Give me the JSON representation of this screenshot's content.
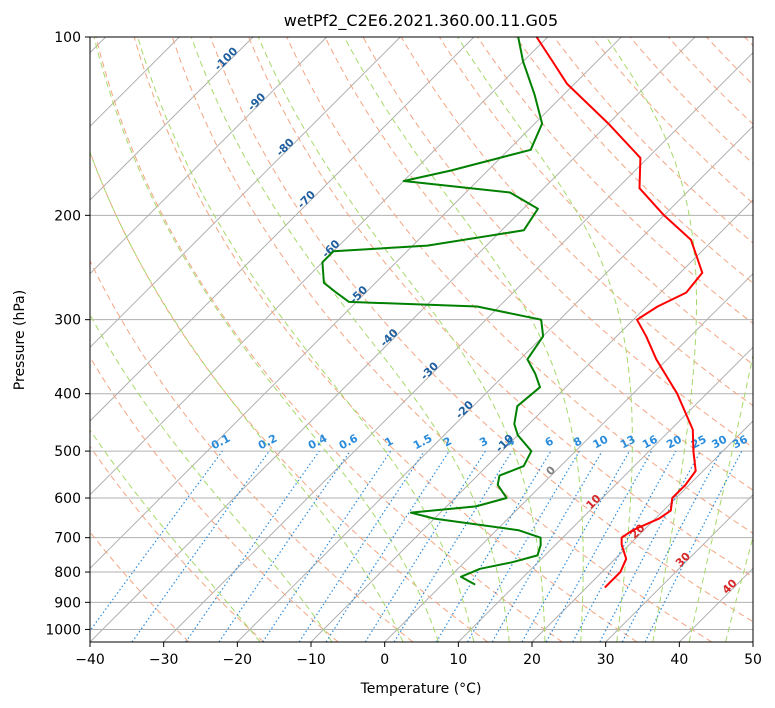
{
  "chart_data": {
    "type": "line",
    "chart_kind": "skew-T log-P diagram",
    "title": "wetPf2_C2E6.2021.360.00.11.G05",
    "xlabel": "Temperature (°C)",
    "ylabel": "Pressure (hPa)",
    "xlim": [
      -40,
      50
    ],
    "ylim": [
      1050,
      100
    ],
    "y_scale": "log",
    "x_ticks": [
      -40,
      -30,
      -20,
      -10,
      0,
      10,
      20,
      30,
      40,
      50
    ],
    "y_ticks": [
      100,
      200,
      300,
      400,
      500,
      600,
      700,
      800,
      900,
      1000
    ],
    "grid": true,
    "series": [
      {
        "role": "temperature",
        "color": "#ff0000",
        "points": [
          {
            "p": 850,
            "t": 22.5
          },
          {
            "p": 800,
            "t": 22.5
          },
          {
            "p": 760,
            "t": 21.5
          },
          {
            "p": 720,
            "t": 19
          },
          {
            "p": 700,
            "t": 18
          },
          {
            "p": 680,
            "t": 18.5
          },
          {
            "p": 650,
            "t": 20.5
          },
          {
            "p": 630,
            "t": 21
          },
          {
            "p": 600,
            "t": 19.5
          },
          {
            "p": 570,
            "t": 19.5
          },
          {
            "p": 540,
            "t": 19
          },
          {
            "p": 500,
            "t": 16
          },
          {
            "p": 460,
            "t": 13
          },
          {
            "p": 400,
            "t": 6
          },
          {
            "p": 350,
            "t": -1.5
          },
          {
            "p": 320,
            "t": -6
          },
          {
            "p": 300,
            "t": -9.5
          },
          {
            "p": 285,
            "t": -8.5
          },
          {
            "p": 270,
            "t": -6.5
          },
          {
            "p": 250,
            "t": -7
          },
          {
            "p": 220,
            "t": -13
          },
          {
            "p": 200,
            "t": -20
          },
          {
            "p": 180,
            "t": -27
          },
          {
            "p": 160,
            "t": -31
          },
          {
            "p": 140,
            "t": -40
          },
          {
            "p": 120,
            "t": -51
          },
          {
            "p": 110,
            "t": -56
          },
          {
            "p": 100,
            "t": -61.5
          }
        ]
      },
      {
        "role": "dewpoint",
        "color": "#008000",
        "points": [
          {
            "p": 840,
            "t": 4.5
          },
          {
            "p": 815,
            "t": 1.5
          },
          {
            "p": 790,
            "t": 3
          },
          {
            "p": 770,
            "t": 6.5
          },
          {
            "p": 750,
            "t": 9
          },
          {
            "p": 720,
            "t": 8
          },
          {
            "p": 700,
            "t": 7
          },
          {
            "p": 680,
            "t": 3
          },
          {
            "p": 650,
            "t": -10
          },
          {
            "p": 635,
            "t": -14
          },
          {
            "p": 620,
            "t": -6
          },
          {
            "p": 600,
            "t": -3
          },
          {
            "p": 570,
            "t": -6
          },
          {
            "p": 550,
            "t": -7
          },
          {
            "p": 530,
            "t": -5
          },
          {
            "p": 500,
            "t": -6
          },
          {
            "p": 470,
            "t": -10
          },
          {
            "p": 450,
            "t": -12
          },
          {
            "p": 420,
            "t": -14
          },
          {
            "p": 390,
            "t": -13.5
          },
          {
            "p": 370,
            "t": -16
          },
          {
            "p": 350,
            "t": -19
          },
          {
            "p": 320,
            "t": -20
          },
          {
            "p": 300,
            "t": -22.5
          },
          {
            "p": 285,
            "t": -33
          },
          {
            "p": 280,
            "t": -51
          },
          {
            "p": 270,
            "t": -54
          },
          {
            "p": 260,
            "t": -57
          },
          {
            "p": 240,
            "t": -60
          },
          {
            "p": 230,
            "t": -60
          },
          {
            "p": 225,
            "t": -48
          },
          {
            "p": 212,
            "t": -37
          },
          {
            "p": 195,
            "t": -38
          },
          {
            "p": 183,
            "t": -44
          },
          {
            "p": 175,
            "t": -60
          },
          {
            "p": 168,
            "t": -55
          },
          {
            "p": 155,
            "t": -47
          },
          {
            "p": 140,
            "t": -49
          },
          {
            "p": 125,
            "t": -54
          },
          {
            "p": 110,
            "t": -60
          },
          {
            "p": 100,
            "t": -64
          }
        ]
      }
    ],
    "dry_adiabat_labels": [
      "-100",
      "-90",
      "-80",
      "-70",
      "-60",
      "-50",
      "-40",
      "-30",
      "-20",
      "-10"
    ],
    "moist_adiabat_labels": [
      "0",
      "10",
      "20",
      "30",
      "40"
    ],
    "mixing_ratio_labels": [
      "0.1",
      "0.2",
      "0.4",
      "0.6",
      "1",
      "1.5",
      "2",
      "3",
      "4",
      "6",
      "8",
      "10",
      "13",
      "16",
      "20",
      "25",
      "30",
      "36"
    ],
    "colors": {
      "isotherm": "#b0b0b0",
      "dry_adiabat": "#f4a582",
      "moist_adiabat": "#a6d96a",
      "mixing_ratio": "#2b8cdb",
      "dry_label": "#1f5f9f",
      "moist_label_red": "#d62728",
      "moist_label_zero": "#7f7f7f"
    }
  }
}
